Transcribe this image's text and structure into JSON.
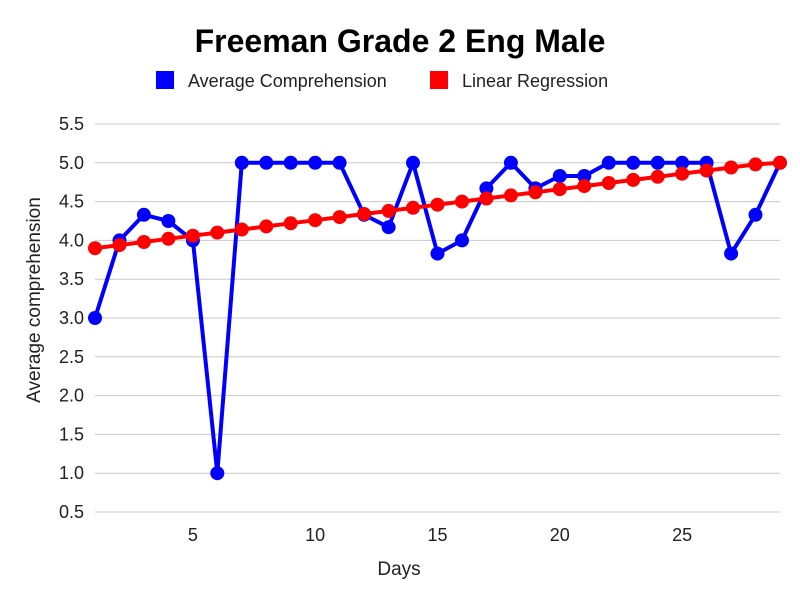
{
  "chart_data": {
    "type": "line",
    "title": "Freeman Grade 2 Eng Male",
    "xlabel": "Days",
    "ylabel": "Average comprehension",
    "x": [
      1,
      2,
      3,
      4,
      5,
      6,
      7,
      8,
      9,
      10,
      11,
      12,
      13,
      14,
      15,
      16,
      17,
      18,
      19,
      20,
      21,
      22,
      23,
      24,
      25,
      26,
      27,
      28,
      29
    ],
    "xlim": [
      1,
      29
    ],
    "x_tick_values": [
      5,
      10,
      15,
      20,
      25
    ],
    "x_tick_labels": [
      "5",
      "10",
      "15",
      "20",
      "25"
    ],
    "ylim": [
      0.5,
      5.5
    ],
    "y_tick_values": [
      0.5,
      1.0,
      1.5,
      2.0,
      2.5,
      3.0,
      3.5,
      4.0,
      4.5,
      5.0,
      5.5
    ],
    "y_tick_labels": [
      "0.5",
      "1.0",
      "1.5",
      "2.0",
      "2.5",
      "3.0",
      "3.5",
      "4.0",
      "4.5",
      "5.0",
      "5.5"
    ],
    "grid": true,
    "legend_position": "top",
    "series": [
      {
        "name": "Average Comprehension",
        "color": "#0000ff",
        "values": [
          3.0,
          4.0,
          4.33,
          4.25,
          4.0,
          1.0,
          5.0,
          5.0,
          5.0,
          5.0,
          5.0,
          4.33,
          4.17,
          5.0,
          3.83,
          4.0,
          4.67,
          5.0,
          4.67,
          4.83,
          4.83,
          5.0,
          5.0,
          5.0,
          5.0,
          5.0,
          3.83,
          4.33,
          5.0
        ]
      },
      {
        "name": "Linear Regression",
        "color": "#ff0000",
        "values": [
          3.9,
          3.94,
          3.98,
          4.02,
          4.06,
          4.1,
          4.14,
          4.18,
          4.22,
          4.26,
          4.3,
          4.34,
          4.38,
          4.42,
          4.46,
          4.5,
          4.54,
          4.58,
          4.62,
          4.66,
          4.7,
          4.74,
          4.78,
          4.82,
          4.86,
          4.9,
          4.94,
          4.98,
          5.0
        ]
      }
    ]
  }
}
